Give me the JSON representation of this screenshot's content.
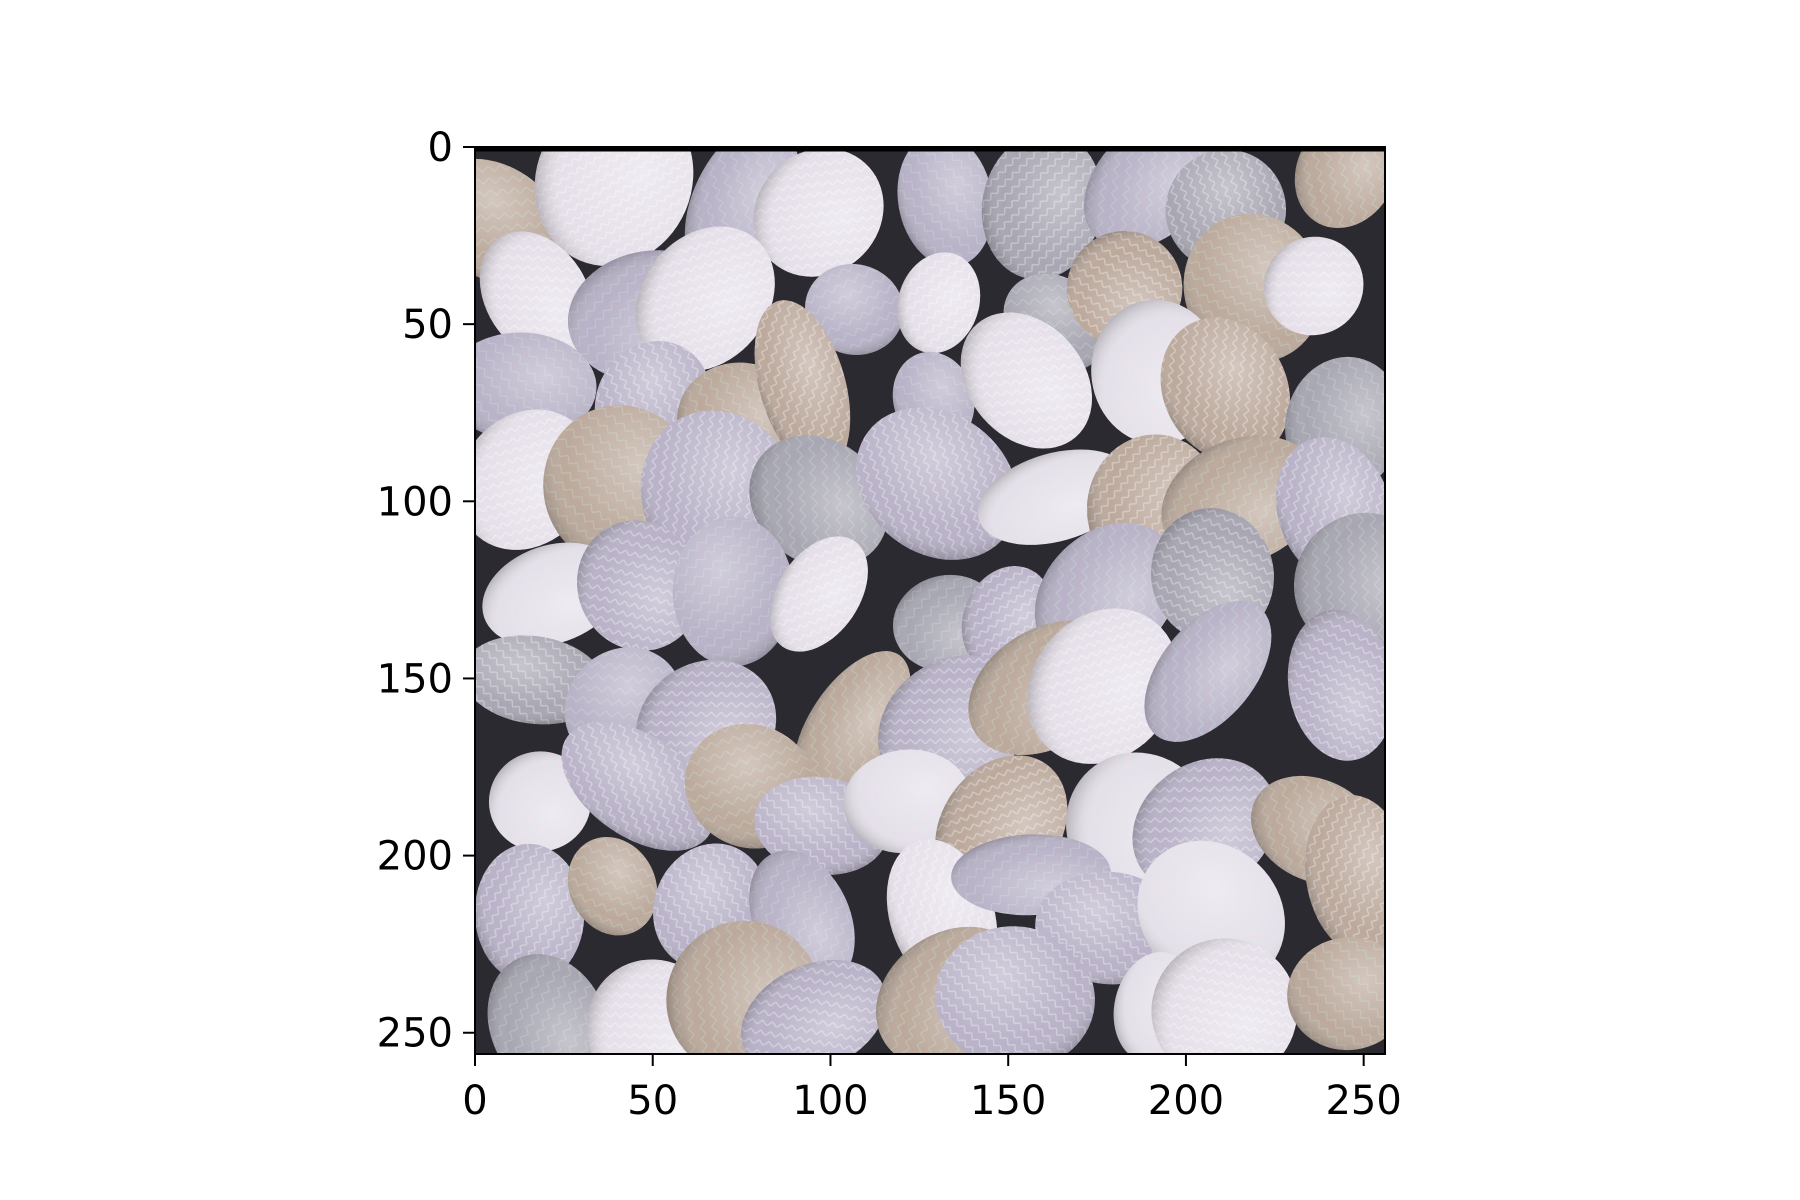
{
  "chart_data": {
    "type": "heatmap",
    "title": "",
    "xlabel": "",
    "ylabel": "",
    "xlim": [
      0,
      256
    ],
    "ylim": [
      256,
      0
    ],
    "x_ticks": [
      0,
      50,
      100,
      150,
      200,
      250
    ],
    "y_ticks": [
      0,
      50,
      100,
      150,
      200,
      250
    ],
    "x_tick_labels": [
      "0",
      "50",
      "100",
      "150",
      "200",
      "250"
    ],
    "y_tick_labels": [
      "0",
      "50",
      "100",
      "150",
      "200",
      "250"
    ],
    "image_description": "Generated texture of rounded pebble-like shapes in pale lavender, beige and grey tones with iridescent pastel high-frequency patterns",
    "colors": {
      "background": "#2b2a30",
      "pebble_lavender": "#b9b2c8",
      "pebble_beige": "#bca99c",
      "pebble_grey": "#a8a6b2",
      "highlight": "#e6e0ea"
    },
    "grid": false,
    "legend": "none"
  }
}
